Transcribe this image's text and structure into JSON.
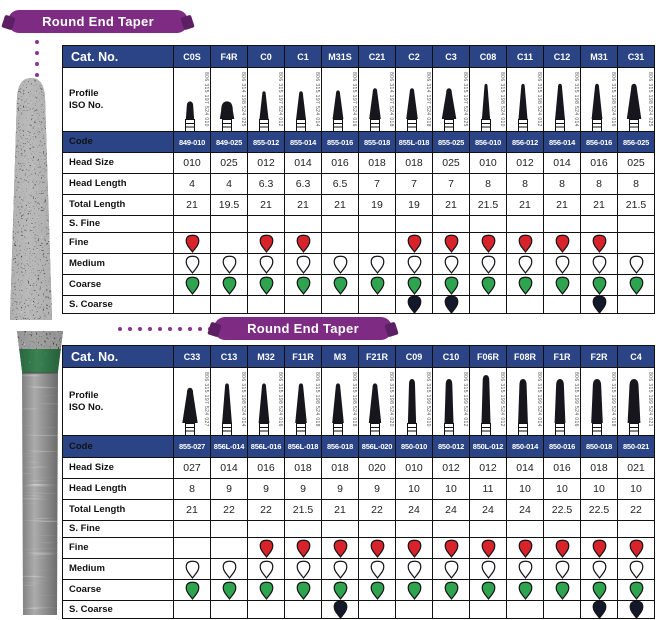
{
  "colors": {
    "header_navy": "#2A4485",
    "badge_purple": "#7E2B83",
    "table_border": "#111111"
  },
  "grade_colors": {
    "fine": "#D8232A",
    "medium": "#FFFFFF",
    "coarse": "#2EA44F",
    "s_coarse": "#13182B"
  },
  "tables": [
    {
      "badge": "Round End Taper",
      "row_labels": {
        "cat_no": "Cat. No.",
        "profile_line1": "Profile",
        "profile_line2": "ISO No.",
        "code": "Code",
        "head_size": "Head Size",
        "head_length": "Head Length",
        "total_length": "Total Length",
        "s_fine": "S. Fine",
        "fine": "Fine",
        "medium": "Medium",
        "coarse": "Coarse",
        "s_coarse": "S. Coarse"
      },
      "columns": [
        {
          "cat": "C0S",
          "iso": "806 315 197 524 010",
          "code": "849-010",
          "head_size": "010",
          "head_length": "4",
          "total_length": "21",
          "grades": {
            "s_fine": false,
            "fine": true,
            "medium": true,
            "coarse": true,
            "s_coarse": false
          }
        },
        {
          "cat": "F4R",
          "iso": "806 314 198 524 025",
          "code": "849-025",
          "head_size": "025",
          "head_length": "4",
          "total_length": "19.5",
          "grades": {
            "s_fine": false,
            "fine": false,
            "medium": true,
            "coarse": true,
            "s_coarse": false
          }
        },
        {
          "cat": "C0",
          "iso": "806 315 197 524 012",
          "code": "855-012",
          "head_size": "012",
          "head_length": "6.3",
          "total_length": "21",
          "grades": {
            "s_fine": false,
            "fine": true,
            "medium": true,
            "coarse": true,
            "s_coarse": false
          }
        },
        {
          "cat": "C1",
          "iso": "806 315 197 524 014",
          "code": "855-014",
          "head_size": "014",
          "head_length": "6.3",
          "total_length": "21",
          "grades": {
            "s_fine": false,
            "fine": true,
            "medium": true,
            "coarse": true,
            "s_coarse": false
          }
        },
        {
          "cat": "M31S",
          "iso": "806 315 197 524 016",
          "code": "855-016",
          "head_size": "016",
          "head_length": "6.5",
          "total_length": "21",
          "grades": {
            "s_fine": false,
            "fine": false,
            "medium": true,
            "coarse": true,
            "s_coarse": false
          }
        },
        {
          "cat": "C21",
          "iso": "806 314 197 524 018",
          "code": "855-018",
          "head_size": "018",
          "head_length": "7",
          "total_length": "19",
          "grades": {
            "s_fine": false,
            "fine": false,
            "medium": true,
            "coarse": true,
            "s_coarse": false
          }
        },
        {
          "cat": "C2",
          "iso": "806 314 197 524 018",
          "code": "855L-018",
          "head_size": "018",
          "head_length": "7",
          "total_length": "19",
          "grades": {
            "s_fine": false,
            "fine": true,
            "medium": true,
            "coarse": true,
            "s_coarse": true
          }
        },
        {
          "cat": "C3",
          "iso": "806 315 197 524 025",
          "code": "855-025",
          "head_size": "025",
          "head_length": "7",
          "total_length": "21",
          "grades": {
            "s_fine": false,
            "fine": true,
            "medium": true,
            "coarse": true,
            "s_coarse": true
          }
        },
        {
          "cat": "C08",
          "iso": "806 315 198 524 010",
          "code": "856-010",
          "head_size": "010",
          "head_length": "8",
          "total_length": "21.5",
          "grades": {
            "s_fine": false,
            "fine": true,
            "medium": true,
            "coarse": true,
            "s_coarse": false
          }
        },
        {
          "cat": "C11",
          "iso": "806 315 198 524 012",
          "code": "856-012",
          "head_size": "012",
          "head_length": "8",
          "total_length": "21",
          "grades": {
            "s_fine": false,
            "fine": true,
            "medium": true,
            "coarse": true,
            "s_coarse": false
          }
        },
        {
          "cat": "C12",
          "iso": "806 315 198 524 014",
          "code": "856-014",
          "head_size": "014",
          "head_length": "8",
          "total_length": "21",
          "grades": {
            "s_fine": false,
            "fine": true,
            "medium": true,
            "coarse": true,
            "s_coarse": false
          }
        },
        {
          "cat": "M31",
          "iso": "806 315 198 524 016",
          "code": "856-016",
          "head_size": "016",
          "head_length": "8",
          "total_length": "21",
          "grades": {
            "s_fine": false,
            "fine": true,
            "medium": true,
            "coarse": true,
            "s_coarse": true
          }
        },
        {
          "cat": "C31",
          "iso": "806 315 198 524 025",
          "code": "856-025",
          "head_size": "025",
          "head_length": "8",
          "total_length": "21.5",
          "grades": {
            "s_fine": false,
            "fine": false,
            "medium": true,
            "coarse": true,
            "s_coarse": false
          }
        }
      ]
    },
    {
      "badge": "Round End Taper",
      "row_labels": {
        "cat_no": "Cat. No.",
        "profile_line1": "Profile",
        "profile_line2": "ISO No.",
        "code": "Code",
        "head_size": "Head Size",
        "head_length": "Head Length",
        "total_length": "Total Length",
        "s_fine": "S. Fine",
        "fine": "Fine",
        "medium": "Medium",
        "coarse": "Coarse",
        "s_coarse": "S. Coarse"
      },
      "columns": [
        {
          "cat": "C33",
          "iso": "806 315 197 524 027",
          "code": "855-027",
          "head_size": "027",
          "head_length": "8",
          "total_length": "21",
          "grades": {
            "s_fine": false,
            "fine": false,
            "medium": true,
            "coarse": true,
            "s_coarse": false
          }
        },
        {
          "cat": "C13",
          "iso": "806 315 198 524 014",
          "code": "856L-014",
          "head_size": "014",
          "head_length": "9",
          "total_length": "22",
          "grades": {
            "s_fine": false,
            "fine": false,
            "medium": true,
            "coarse": true,
            "s_coarse": false
          }
        },
        {
          "cat": "M32",
          "iso": "806 315 198 524 016",
          "code": "856L-016",
          "head_size": "016",
          "head_length": "9",
          "total_length": "22",
          "grades": {
            "s_fine": false,
            "fine": true,
            "medium": true,
            "coarse": true,
            "s_coarse": false
          }
        },
        {
          "cat": "F11R",
          "iso": "806 315 198 524 018",
          "code": "856L-018",
          "head_size": "018",
          "head_length": "9",
          "total_length": "21.5",
          "grades": {
            "s_fine": false,
            "fine": true,
            "medium": true,
            "coarse": true,
            "s_coarse": false
          }
        },
        {
          "cat": "M3",
          "iso": "806 315 198 524 018",
          "code": "856-018",
          "head_size": "018",
          "head_length": "9",
          "total_length": "21",
          "grades": {
            "s_fine": false,
            "fine": true,
            "medium": true,
            "coarse": true,
            "s_coarse": true
          }
        },
        {
          "cat": "F21R",
          "iso": "806 315 198 524 020",
          "code": "856L-020",
          "head_size": "020",
          "head_length": "9",
          "total_length": "22",
          "grades": {
            "s_fine": false,
            "fine": true,
            "medium": true,
            "coarse": true,
            "s_coarse": false
          }
        },
        {
          "cat": "C09",
          "iso": "806 315 199 524 010",
          "code": "850-010",
          "head_size": "010",
          "head_length": "10",
          "total_length": "24",
          "grades": {
            "s_fine": false,
            "fine": true,
            "medium": true,
            "coarse": true,
            "s_coarse": false
          }
        },
        {
          "cat": "C10",
          "iso": "806 315 199 524 012",
          "code": "850-012",
          "head_size": "012",
          "head_length": "10",
          "total_length": "24",
          "grades": {
            "s_fine": false,
            "fine": true,
            "medium": true,
            "coarse": true,
            "s_coarse": false
          }
        },
        {
          "cat": "F06R",
          "iso": "806 315 199 524 012",
          "code": "850L-012",
          "head_size": "012",
          "head_length": "11",
          "total_length": "24",
          "grades": {
            "s_fine": false,
            "fine": true,
            "medium": true,
            "coarse": true,
            "s_coarse": false
          }
        },
        {
          "cat": "F08R",
          "iso": "806 315 199 524 014",
          "code": "850-014",
          "head_size": "014",
          "head_length": "10",
          "total_length": "24",
          "grades": {
            "s_fine": false,
            "fine": true,
            "medium": true,
            "coarse": true,
            "s_coarse": false
          }
        },
        {
          "cat": "F1R",
          "iso": "806 315 199 524 016",
          "code": "850-016",
          "head_size": "016",
          "head_length": "10",
          "total_length": "22.5",
          "grades": {
            "s_fine": false,
            "fine": true,
            "medium": true,
            "coarse": true,
            "s_coarse": false
          }
        },
        {
          "cat": "F2R",
          "iso": "806 315 199 524 018",
          "code": "850-018",
          "head_size": "018",
          "head_length": "10",
          "total_length": "22.5",
          "grades": {
            "s_fine": false,
            "fine": true,
            "medium": true,
            "coarse": true,
            "s_coarse": true
          }
        },
        {
          "cat": "C4",
          "iso": "806 315 199 524 021",
          "code": "850-021",
          "head_size": "021",
          "head_length": "10",
          "total_length": "22",
          "grades": {
            "s_fine": false,
            "fine": true,
            "medium": true,
            "coarse": true,
            "s_coarse": true
          }
        }
      ]
    }
  ]
}
